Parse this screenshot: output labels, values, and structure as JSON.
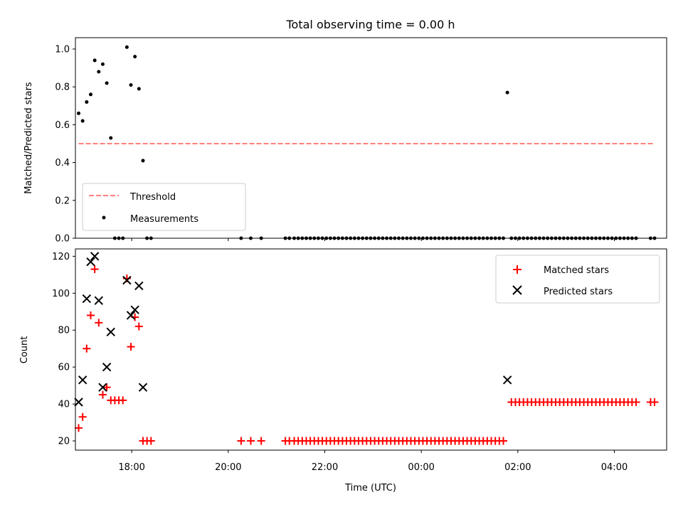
{
  "chart_data": [
    {
      "type": "scatter",
      "title": "Total observing time = 0.00 h",
      "xlabel": "",
      "ylabel": "Matched/Predicted stars",
      "xlim": [
        "16:50",
        "05:05"
      ],
      "ylim": [
        0,
        1.06
      ],
      "yticks": [
        "0.0",
        "0.2",
        "0.4",
        "0.6",
        "0.8",
        "1.0"
      ],
      "legend": {
        "position": "lower-left",
        "entries": [
          "Threshold",
          "Measurements"
        ]
      },
      "series": [
        {
          "name": "Threshold",
          "kind": "dashed-line",
          "color": "#ff7f7f",
          "x": [
            "16:54",
            "04:50"
          ],
          "y": [
            0.5,
            0.5
          ]
        },
        {
          "name": "Measurements",
          "kind": "points",
          "color": "#000000",
          "points": [
            [
              "16:54",
              0.66
            ],
            [
              "16:59",
              0.62
            ],
            [
              "17:04",
              0.72
            ],
            [
              "17:09",
              0.76
            ],
            [
              "17:14",
              0.94
            ],
            [
              "17:19",
              0.88
            ],
            [
              "17:24",
              0.92
            ],
            [
              "17:29",
              0.82
            ],
            [
              "17:34",
              0.53
            ],
            [
              "17:39",
              0.0
            ],
            [
              "17:44",
              0.0
            ],
            [
              "17:49",
              0.0
            ],
            [
              "17:54",
              1.01
            ],
            [
              "17:59",
              0.81
            ],
            [
              "18:04",
              0.96
            ],
            [
              "18:09",
              0.79
            ],
            [
              "18:14",
              0.41
            ],
            [
              "18:19",
              0.0
            ],
            [
              "18:24",
              0.0
            ],
            [
              "20:16",
              0.0
            ],
            [
              "20:28",
              0.0
            ],
            [
              "20:41",
              0.0
            ],
            [
              "21:11",
              0.0
            ],
            [
              "21:16",
              0.0
            ],
            [
              "21:22",
              0.0
            ],
            [
              "21:27",
              0.0
            ],
            [
              "21:32",
              0.0
            ],
            [
              "21:37",
              0.0
            ],
            [
              "21:42",
              0.0
            ],
            [
              "21:47",
              0.0
            ],
            [
              "21:52",
              0.0
            ],
            [
              "21:57",
              0.0
            ],
            [
              "22:02",
              0.0
            ],
            [
              "22:07",
              0.0
            ],
            [
              "22:12",
              0.0
            ],
            [
              "22:17",
              0.0
            ],
            [
              "22:22",
              0.0
            ],
            [
              "22:27",
              0.0
            ],
            [
              "22:32",
              0.0
            ],
            [
              "22:37",
              0.0
            ],
            [
              "22:42",
              0.0
            ],
            [
              "22:47",
              0.0
            ],
            [
              "22:52",
              0.0
            ],
            [
              "22:57",
              0.0
            ],
            [
              "23:02",
              0.0
            ],
            [
              "23:07",
              0.0
            ],
            [
              "23:12",
              0.0
            ],
            [
              "23:17",
              0.0
            ],
            [
              "23:22",
              0.0
            ],
            [
              "23:27",
              0.0
            ],
            [
              "23:32",
              0.0
            ],
            [
              "23:37",
              0.0
            ],
            [
              "23:42",
              0.0
            ],
            [
              "23:47",
              0.0
            ],
            [
              "23:52",
              0.0
            ],
            [
              "23:57",
              0.0
            ],
            [
              "00:02",
              0.0
            ],
            [
              "00:07",
              0.0
            ],
            [
              "00:12",
              0.0
            ],
            [
              "00:17",
              0.0
            ],
            [
              "00:22",
              0.0
            ],
            [
              "00:27",
              0.0
            ],
            [
              "00:32",
              0.0
            ],
            [
              "00:37",
              0.0
            ],
            [
              "00:42",
              0.0
            ],
            [
              "00:47",
              0.0
            ],
            [
              "00:52",
              0.0
            ],
            [
              "00:57",
              0.0
            ],
            [
              "01:02",
              0.0
            ],
            [
              "01:07",
              0.0
            ],
            [
              "01:12",
              0.0
            ],
            [
              "01:17",
              0.0
            ],
            [
              "01:22",
              0.0
            ],
            [
              "01:27",
              0.0
            ],
            [
              "01:32",
              0.0
            ],
            [
              "01:37",
              0.0
            ],
            [
              "01:42",
              0.0
            ],
            [
              "01:47",
              0.77
            ],
            [
              "01:52",
              0.0
            ],
            [
              "01:57",
              0.0
            ],
            [
              "02:02",
              0.0
            ],
            [
              "02:07",
              0.0
            ],
            [
              "02:12",
              0.0
            ],
            [
              "02:17",
              0.0
            ],
            [
              "02:22",
              0.0
            ],
            [
              "02:27",
              0.0
            ],
            [
              "02:32",
              0.0
            ],
            [
              "02:37",
              0.0
            ],
            [
              "02:42",
              0.0
            ],
            [
              "02:47",
              0.0
            ],
            [
              "02:52",
              0.0
            ],
            [
              "02:57",
              0.0
            ],
            [
              "03:02",
              0.0
            ],
            [
              "03:07",
              0.0
            ],
            [
              "03:12",
              0.0
            ],
            [
              "03:17",
              0.0
            ],
            [
              "03:22",
              0.0
            ],
            [
              "03:27",
              0.0
            ],
            [
              "03:32",
              0.0
            ],
            [
              "03:37",
              0.0
            ],
            [
              "03:42",
              0.0
            ],
            [
              "03:47",
              0.0
            ],
            [
              "03:52",
              0.0
            ],
            [
              "03:57",
              0.0
            ],
            [
              "04:02",
              0.0
            ],
            [
              "04:07",
              0.0
            ],
            [
              "04:12",
              0.0
            ],
            [
              "04:17",
              0.0
            ],
            [
              "04:22",
              0.0
            ],
            [
              "04:27",
              0.0
            ],
            [
              "04:45",
              0.0
            ],
            [
              "04:50",
              0.0
            ]
          ]
        }
      ]
    },
    {
      "type": "scatter",
      "title": "",
      "xlabel": "Time (UTC)",
      "ylabel": "Count",
      "xlim": [
        "16:50",
        "05:05"
      ],
      "ylim": [
        15,
        124
      ],
      "yticks": [
        "20",
        "40",
        "60",
        "80",
        "100",
        "120"
      ],
      "xticks": [
        "18:00",
        "20:00",
        "22:00",
        "00:00",
        "02:00",
        "04:00"
      ],
      "legend": {
        "position": "top-right",
        "entries": [
          "Matched stars",
          "Predicted stars"
        ]
      },
      "series": [
        {
          "name": "Matched stars",
          "marker": "plus",
          "color": "#ff0000",
          "points": [
            [
              "16:54",
              27
            ],
            [
              "16:59",
              33
            ],
            [
              "17:04",
              70
            ],
            [
              "17:09",
              88
            ],
            [
              "17:14",
              113
            ],
            [
              "17:19",
              84
            ],
            [
              "17:24",
              45
            ],
            [
              "17:29",
              49
            ],
            [
              "17:34",
              42
            ],
            [
              "17:39",
              42
            ],
            [
              "17:44",
              42
            ],
            [
              "17:49",
              42
            ],
            [
              "17:54",
              108
            ],
            [
              "17:59",
              71
            ],
            [
              "18:04",
              87
            ],
            [
              "18:09",
              82
            ],
            [
              "18:14",
              20
            ],
            [
              "18:19",
              20
            ],
            [
              "18:24",
              20
            ],
            [
              "20:16",
              20
            ],
            [
              "20:28",
              20
            ],
            [
              "20:41",
              20
            ],
            [
              "21:11",
              20
            ],
            [
              "21:16",
              20
            ],
            [
              "21:22",
              20
            ],
            [
              "21:27",
              20
            ],
            [
              "21:32",
              20
            ],
            [
              "21:37",
              20
            ],
            [
              "21:42",
              20
            ],
            [
              "21:47",
              20
            ],
            [
              "21:52",
              20
            ],
            [
              "21:57",
              20
            ],
            [
              "22:02",
              20
            ],
            [
              "22:07",
              20
            ],
            [
              "22:12",
              20
            ],
            [
              "22:17",
              20
            ],
            [
              "22:22",
              20
            ],
            [
              "22:27",
              20
            ],
            [
              "22:32",
              20
            ],
            [
              "22:37",
              20
            ],
            [
              "22:42",
              20
            ],
            [
              "22:47",
              20
            ],
            [
              "22:52",
              20
            ],
            [
              "22:57",
              20
            ],
            [
              "23:02",
              20
            ],
            [
              "23:07",
              20
            ],
            [
              "23:12",
              20
            ],
            [
              "23:17",
              20
            ],
            [
              "23:22",
              20
            ],
            [
              "23:27",
              20
            ],
            [
              "23:32",
              20
            ],
            [
              "23:37",
              20
            ],
            [
              "23:42",
              20
            ],
            [
              "23:47",
              20
            ],
            [
              "23:52",
              20
            ],
            [
              "23:57",
              20
            ],
            [
              "00:02",
              20
            ],
            [
              "00:07",
              20
            ],
            [
              "00:12",
              20
            ],
            [
              "00:17",
              20
            ],
            [
              "00:22",
              20
            ],
            [
              "00:27",
              20
            ],
            [
              "00:32",
              20
            ],
            [
              "00:37",
              20
            ],
            [
              "00:42",
              20
            ],
            [
              "00:47",
              20
            ],
            [
              "00:52",
              20
            ],
            [
              "00:57",
              20
            ],
            [
              "01:02",
              20
            ],
            [
              "01:07",
              20
            ],
            [
              "01:12",
              20
            ],
            [
              "01:17",
              20
            ],
            [
              "01:22",
              20
            ],
            [
              "01:27",
              20
            ],
            [
              "01:32",
              20
            ],
            [
              "01:37",
              20
            ],
            [
              "01:42",
              20
            ],
            [
              "01:52",
              41
            ],
            [
              "01:57",
              41
            ],
            [
              "02:02",
              41
            ],
            [
              "02:07",
              41
            ],
            [
              "02:12",
              41
            ],
            [
              "02:17",
              41
            ],
            [
              "02:22",
              41
            ],
            [
              "02:27",
              41
            ],
            [
              "02:32",
              41
            ],
            [
              "02:37",
              41
            ],
            [
              "02:42",
              41
            ],
            [
              "02:47",
              41
            ],
            [
              "02:52",
              41
            ],
            [
              "02:57",
              41
            ],
            [
              "03:02",
              41
            ],
            [
              "03:07",
              41
            ],
            [
              "03:12",
              41
            ],
            [
              "03:17",
              41
            ],
            [
              "03:22",
              41
            ],
            [
              "03:27",
              41
            ],
            [
              "03:32",
              41
            ],
            [
              "03:37",
              41
            ],
            [
              "03:42",
              41
            ],
            [
              "03:47",
              41
            ],
            [
              "03:52",
              41
            ],
            [
              "03:57",
              41
            ],
            [
              "04:02",
              41
            ],
            [
              "04:07",
              41
            ],
            [
              "04:12",
              41
            ],
            [
              "04:17",
              41
            ],
            [
              "04:22",
              41
            ],
            [
              "04:27",
              41
            ],
            [
              "04:45",
              41
            ],
            [
              "04:50",
              41
            ]
          ]
        },
        {
          "name": "Predicted stars",
          "marker": "x",
          "color": "#000000",
          "points": [
            [
              "16:54",
              41
            ],
            [
              "16:59",
              53
            ],
            [
              "17:04",
              97
            ],
            [
              "17:09",
              117
            ],
            [
              "17:14",
              120
            ],
            [
              "17:19",
              96
            ],
            [
              "17:24",
              49
            ],
            [
              "17:29",
              60
            ],
            [
              "17:34",
              79
            ],
            [
              "17:54",
              107
            ],
            [
              "17:59",
              88
            ],
            [
              "18:04",
              91
            ],
            [
              "18:09",
              104
            ],
            [
              "18:14",
              49
            ],
            [
              "01:47",
              53
            ]
          ]
        }
      ]
    }
  ]
}
